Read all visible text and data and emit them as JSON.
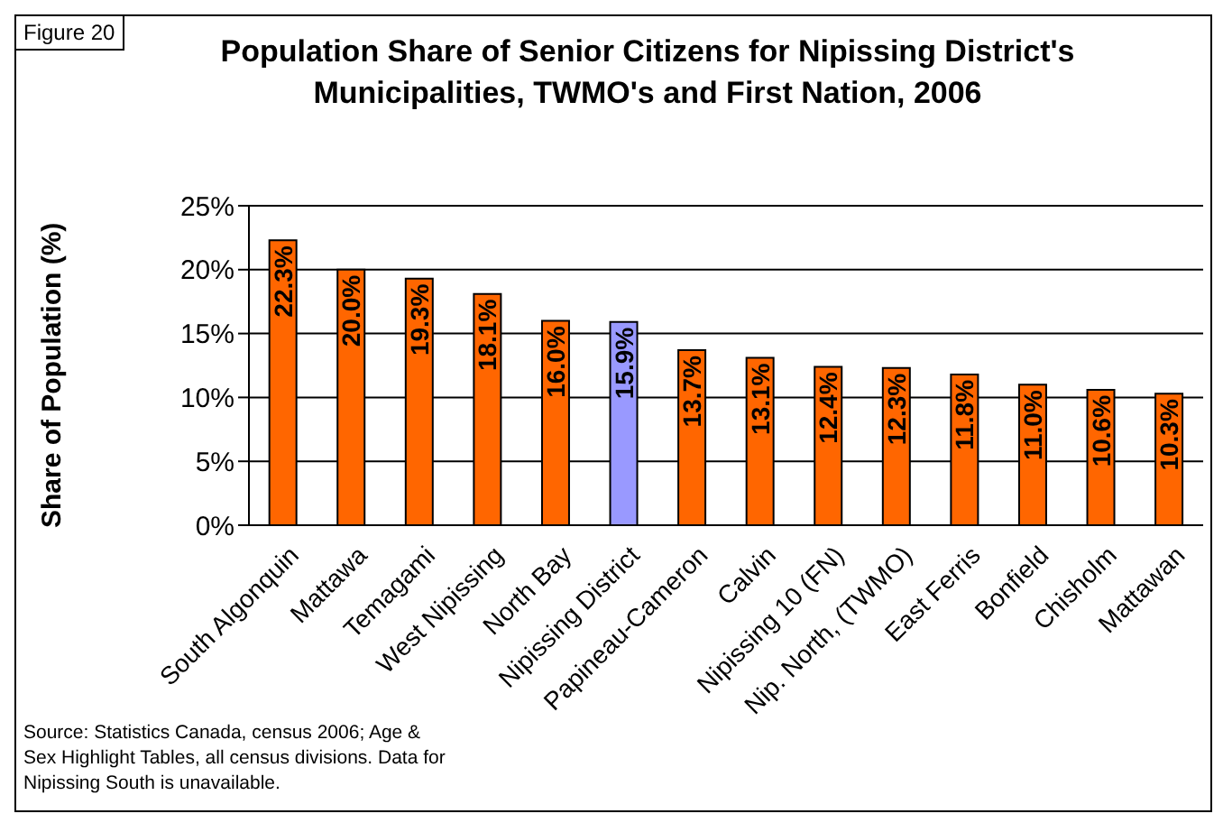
{
  "chart_data": {
    "type": "bar",
    "title": "Population Share of Senior Citizens for Nipissing District's Municipalities, TWMO's and First Nation, 2006",
    "ylabel": "Share of Population (%)",
    "categories": [
      "South Algonquin",
      "Mattawa",
      "Temagami",
      "West Nipissing",
      "North Bay",
      "Nipissing District",
      "Papineau-Cameron",
      "Calvin",
      "Nipissing 10 (FN)",
      "Nip. North, (TWMO)",
      "East Ferris",
      "Bonfield",
      "Chisholm",
      "Mattawan"
    ],
    "values": [
      22.3,
      20.0,
      19.3,
      18.1,
      16.0,
      15.9,
      13.7,
      13.1,
      12.4,
      12.3,
      11.8,
      11.0,
      10.6,
      10.3
    ],
    "value_labels": [
      "22.3%",
      "20.0%",
      "19.3%",
      "18.1%",
      "16.0%",
      "15.9%",
      "13.7%",
      "13.1%",
      "12.4%",
      "12.3%",
      "11.8%",
      "11.0%",
      "10.6%",
      "10.3%"
    ],
    "colors": [
      "#ff6600",
      "#ff6600",
      "#ff6600",
      "#ff6600",
      "#ff6600",
      "#9999ff",
      "#ff6600",
      "#ff6600",
      "#ff6600",
      "#ff6600",
      "#ff6600",
      "#ff6600",
      "#ff6600",
      "#ff6600"
    ],
    "ylim": [
      0,
      25
    ],
    "yticks": [
      {
        "value": 0,
        "label": "0%"
      },
      {
        "value": 5,
        "label": "5%"
      },
      {
        "value": 10,
        "label": "10%"
      },
      {
        "value": 15,
        "label": "15%"
      },
      {
        "value": 20,
        "label": "20%"
      },
      {
        "value": 25,
        "label": "25%"
      }
    ],
    "grid": "y",
    "annotations": [
      "Figure 20",
      "Source: Statistics Canada, census 2006; Age & Sex Highlight Tables, all census divisions. Data for Nipissing South is unavailable."
    ]
  }
}
